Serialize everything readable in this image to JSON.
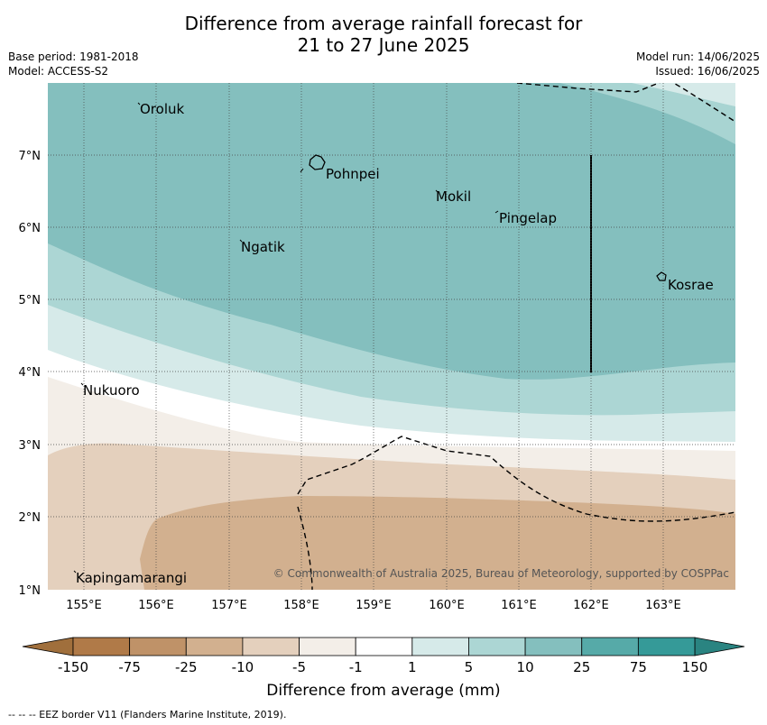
{
  "title_line1": "Difference from average rainfall forecast for",
  "title_line2": "21 to 27 June 2025",
  "base_period": "Base period: 1981-2018",
  "model": "Model: ACCESS-S2",
  "model_run": "Model run: 14/06/2025",
  "issued": "Issued: 16/06/2025",
  "copyright": "© Commonwealth of Australia 2025, Bureau of Meteorology, supported by COSPPac",
  "colorbar_label": "Difference from average (mm)",
  "footnote": "--  --  -- EEZ border V11 (Flanders Marine Institute, 2019).",
  "lon_ticks": [
    "155°E",
    "156°E",
    "157°E",
    "158°E",
    "159°E",
    "160°E",
    "161°E",
    "162°E",
    "163°E"
  ],
  "lat_ticks": [
    "7°N",
    "6°N",
    "5°N",
    "4°N",
    "3°N",
    "2°N",
    "1°N"
  ],
  "places": [
    {
      "name": "Oroluk"
    },
    {
      "name": "Pohnpei"
    },
    {
      "name": "Mokil"
    },
    {
      "name": "Pingelap"
    },
    {
      "name": "Ngatik"
    },
    {
      "name": "Kosrae"
    },
    {
      "name": "Nukuoro"
    },
    {
      "name": "Kapingamarangi"
    }
  ],
  "colorbar": {
    "ticks": [
      "-150",
      "-75",
      "-25",
      "-10",
      "-5",
      "-1",
      "1",
      "5",
      "10",
      "25",
      "75",
      "150"
    ],
    "colors": [
      "#a06f3c",
      "#b07a48",
      "#bf9268",
      "#d2b08f",
      "#e4d0bd",
      "#f3eee8",
      "#ffffff",
      "#d6eae9",
      "#acd6d4",
      "#84bfbe",
      "#56aaa8",
      "#359a98",
      "#2a8481"
    ]
  }
}
